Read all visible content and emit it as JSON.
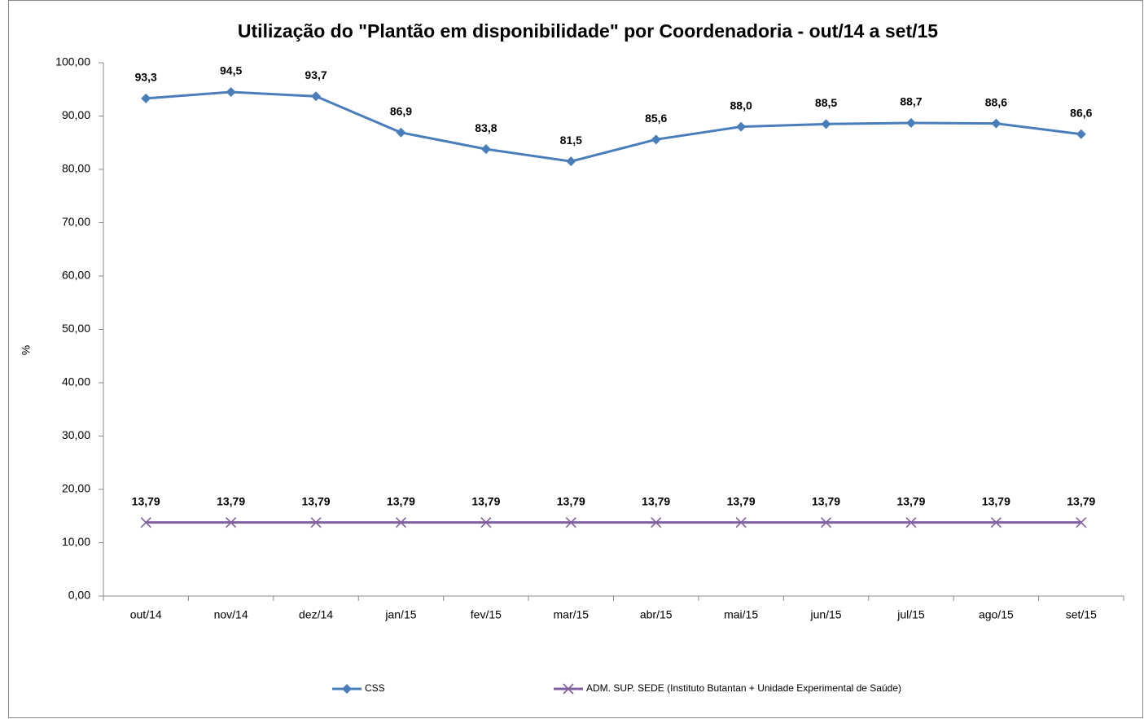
{
  "chart_data": {
    "type": "line",
    "title": "Utilização do \"Plantão em disponibilidade\" por Coordenadoria - out/14 a set/15",
    "y_label": "%",
    "categories": [
      "out/14",
      "nov/14",
      "dez/14",
      "jan/15",
      "fev/15",
      "mar/15",
      "abr/15",
      "mai/15",
      "jun/15",
      "jul/15",
      "ago/15",
      "set/15"
    ],
    "series": [
      {
        "name": "CSS",
        "color": "#4a7ebb",
        "marker": "diamond",
        "values": [
          93.3,
          94.5,
          93.7,
          86.9,
          83.8,
          81.5,
          85.6,
          88.0,
          88.5,
          88.7,
          88.6,
          86.6
        ],
        "value_labels": [
          "93,3",
          "94,5",
          "93,7",
          "86,9",
          "83,8",
          "81,5",
          "85,6",
          "88,0",
          "88,5",
          "88,7",
          "88,6",
          "86,6"
        ]
      },
      {
        "name": "ADM. SUP. SEDE (Instituto Butantan + Unidade Experimental de Saúde)",
        "color": "#7f60a0",
        "marker": "x",
        "values": [
          13.79,
          13.79,
          13.79,
          13.79,
          13.79,
          13.79,
          13.79,
          13.79,
          13.79,
          13.79,
          13.79,
          13.79
        ],
        "value_labels": [
          "13,79",
          "13,79",
          "13,79",
          "13,79",
          "13,79",
          "13,79",
          "13,79",
          "13,79",
          "13,79",
          "13,79",
          "13,79",
          "13,79"
        ]
      }
    ],
    "ylim": [
      0,
      100
    ],
    "yticks": [
      {
        "value": 0,
        "label": "0,00"
      },
      {
        "value": 10,
        "label": "10,00"
      },
      {
        "value": 20,
        "label": "20,00"
      },
      {
        "value": 30,
        "label": "30,00"
      },
      {
        "value": 40,
        "label": "40,00"
      },
      {
        "value": 50,
        "label": "50,00"
      },
      {
        "value": 60,
        "label": "60,00"
      },
      {
        "value": 70,
        "label": "70,00"
      },
      {
        "value": 80,
        "label": "80,00"
      },
      {
        "value": 90,
        "label": "90,00"
      },
      {
        "value": 100,
        "label": "100,00"
      }
    ],
    "grid": false,
    "legend": "bottom"
  }
}
